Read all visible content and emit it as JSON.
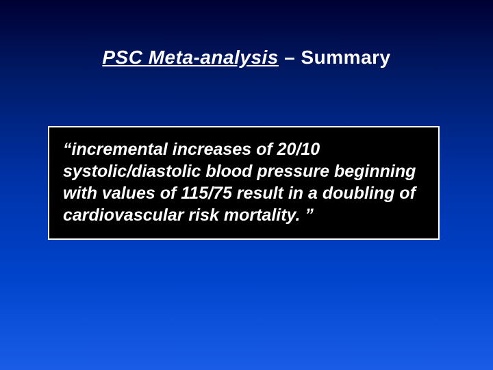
{
  "slide": {
    "background": {
      "type": "linear-gradient",
      "direction": "vertical",
      "stops": [
        "#000033",
        "#001a66",
        "#0033aa",
        "#0044cc",
        "#1a5ce6"
      ]
    },
    "title": {
      "underlined_part": "PSC Meta-analysis",
      "plain_part": " – Summary",
      "color": "#ffffff",
      "font_size_pt": 28,
      "font_weight": "bold"
    },
    "callout": {
      "text": "“incremental increases of 20/10 systolic/diastolic blood pressure beginning with values of 115/75 result in a doubling of cardiovascular risk mortality. ”",
      "background_color": "#000000",
      "border_color": "#ffffff",
      "text_color": "#ffffff",
      "font_size_pt": 25,
      "font_weight": "bold",
      "font_style": "italic"
    }
  }
}
